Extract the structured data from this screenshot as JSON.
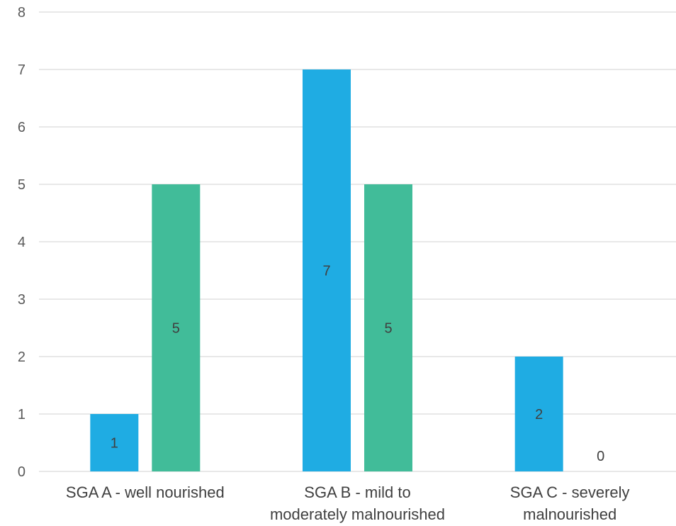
{
  "chart_data": {
    "type": "bar",
    "categories": [
      [
        "SGA A - well nourished"
      ],
      [
        "SGA B - mild to",
        "moderately malnourished"
      ],
      [
        "SGA C - severely",
        "malnourished"
      ]
    ],
    "series": [
      {
        "values": [
          1,
          7,
          2
        ],
        "color": "#1FACE3"
      },
      {
        "values": [
          5,
          5,
          0
        ],
        "color": "#41BC99"
      }
    ],
    "y_ticks": [
      0,
      1,
      2,
      3,
      4,
      5,
      6,
      7,
      8
    ],
    "ylim": [
      0,
      8
    ],
    "grid": true,
    "data_labels": true,
    "legend": false
  }
}
